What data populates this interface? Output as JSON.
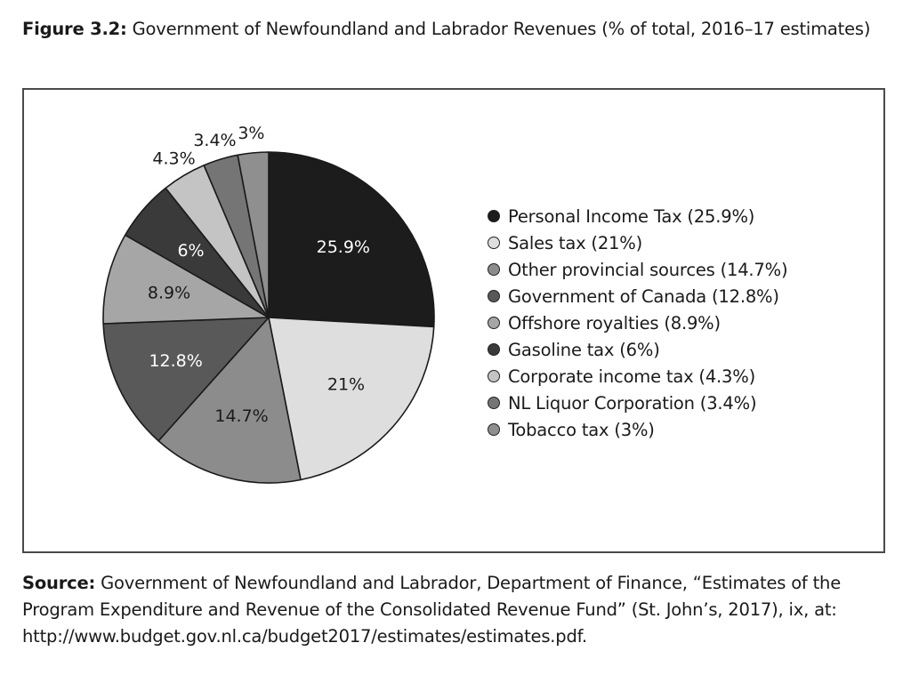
{
  "caption": {
    "label": "Figure 3.2:",
    "text": " Government of Newfoundland and Labrador Revenues (% of total, 2016–17 estimates)"
  },
  "chart_data": {
    "type": "pie",
    "title": "Government of Newfoundland and Labrador Revenues (% of total, 2016–17 estimates)",
    "start_angle": "12 o'clock, clockwise",
    "slices": [
      {
        "name": "Personal Income Tax",
        "value": 25.9,
        "label": "25.9%",
        "legend": "Personal Income Tax (25.9%)",
        "color": "#1c1c1c",
        "text_color": "#ffffff"
      },
      {
        "name": "Sales tax",
        "value": 21,
        "label": "21%",
        "legend": "Sales tax (21%)",
        "color": "#dedede",
        "text_color": "#1a1a1a"
      },
      {
        "name": "Other provincial sources",
        "value": 14.7,
        "label": "14.7%",
        "legend": "Other provincial sources (14.7%)",
        "color": "#8c8c8c",
        "text_color": "#1a1a1a"
      },
      {
        "name": "Government of Canada",
        "value": 12.8,
        "label": "12.8%",
        "legend": "Government of Canada (12.8%)",
        "color": "#595959",
        "text_color": "#ffffff"
      },
      {
        "name": "Offshore royalties",
        "value": 8.9,
        "label": "8.9%",
        "legend": "Offshore royalties (8.9%)",
        "color": "#a6a6a6",
        "text_color": "#1a1a1a"
      },
      {
        "name": "Gasoline tax",
        "value": 6,
        "label": "6%",
        "legend": "Gasoline tax (6%)",
        "color": "#3a3a3a",
        "text_color": "#ffffff"
      },
      {
        "name": "Corporate income tax",
        "value": 4.3,
        "label": "4.3%",
        "legend": "Corporate income tax (4.3%)",
        "color": "#c4c4c4",
        "text_color": "#1a1a1a",
        "outside": true
      },
      {
        "name": "NL Liquor Corporation",
        "value": 3.4,
        "label": "3.4%",
        "legend": "NL Liquor Corporation (3.4%)",
        "color": "#757575",
        "text_color": "#1a1a1a",
        "outside": true
      },
      {
        "name": "Tobacco tax",
        "value": 3,
        "label": "3%",
        "legend": "Tobacco tax (3%)",
        "color": "#8f8f8f",
        "text_color": "#1a1a1a",
        "outside": true
      }
    ],
    "legend_position": "right"
  },
  "source": {
    "label": "Source:",
    "text": " Government of Newfoundland and Labrador, Department of Finance, “Estimates of the Program Expenditure and Revenue of the Consolidated Revenue Fund” (St. John’s, 2017), ix, at: http://www.budget.gov.nl.ca/budget2017/estimates/estimates.pdf."
  }
}
